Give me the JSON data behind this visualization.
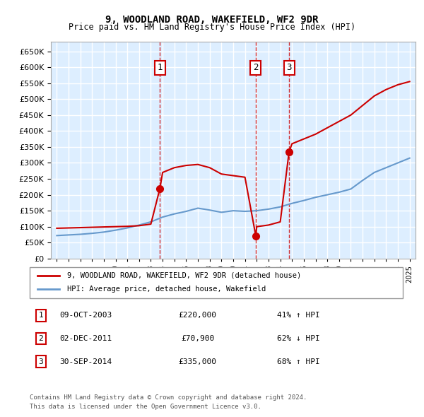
{
  "title": "9, WOODLAND ROAD, WAKEFIELD, WF2 9DR",
  "subtitle": "Price paid vs. HM Land Registry's House Price Index (HPI)",
  "legend_line1": "9, WOODLAND ROAD, WAKEFIELD, WF2 9DR (detached house)",
  "legend_line2": "HPI: Average price, detached house, Wakefield",
  "footer1": "Contains HM Land Registry data © Crown copyright and database right 2024.",
  "footer2": "This data is licensed under the Open Government Licence v3.0.",
  "transactions": [
    {
      "num": 1,
      "date": "09-OCT-2003",
      "price": 220000,
      "pct": "41%",
      "dir": "↑",
      "year": 2003.77
    },
    {
      "num": 2,
      "date": "02-DEC-2011",
      "price": 70900,
      "pct": "62%",
      "dir": "↓",
      "year": 2011.92
    },
    {
      "num": 3,
      "date": "30-SEP-2014",
      "price": 335000,
      "pct": "68%",
      "dir": "↑",
      "year": 2014.75
    }
  ],
  "red_color": "#cc0000",
  "blue_color": "#6699cc",
  "bg_color": "#ddeeff",
  "grid_color": "#ffffff",
  "marker_box_color": "#cc0000",
  "ylim": [
    0,
    680000
  ],
  "yticks": [
    0,
    50000,
    100000,
    150000,
    200000,
    250000,
    300000,
    350000,
    400000,
    450000,
    500000,
    550000,
    600000,
    650000
  ],
  "xlim_start": 1994.5,
  "xlim_end": 2025.5,
  "hpi_years": [
    1995,
    1996,
    1997,
    1998,
    1999,
    2000,
    2001,
    2002,
    2003,
    2004,
    2005,
    2006,
    2007,
    2008,
    2009,
    2010,
    2011,
    2012,
    2013,
    2014,
    2015,
    2016,
    2017,
    2018,
    2019,
    2020,
    2021,
    2022,
    2023,
    2024,
    2025
  ],
  "hpi_values": [
    72000,
    74000,
    76000,
    79000,
    83000,
    89000,
    96000,
    105000,
    115000,
    130000,
    140000,
    148000,
    158000,
    152000,
    145000,
    150000,
    148000,
    150000,
    155000,
    162000,
    173000,
    182000,
    192000,
    200000,
    208000,
    218000,
    245000,
    270000,
    285000,
    300000,
    315000
  ],
  "red_years": [
    1995,
    1996,
    1997,
    1998,
    1999,
    2000,
    2001,
    2002,
    2003,
    2003.77,
    2004,
    2005,
    2006,
    2007,
    2008,
    2009,
    2010,
    2011,
    2011.92,
    2012,
    2013,
    2014,
    2014.75,
    2015,
    2016,
    2017,
    2018,
    2019,
    2020,
    2021,
    2022,
    2023,
    2024,
    2025
  ],
  "red_values": [
    95000,
    96000,
    97000,
    98000,
    99000,
    100000,
    101000,
    103000,
    108000,
    220000,
    270000,
    285000,
    292000,
    295000,
    285000,
    265000,
    260000,
    255000,
    70900,
    100000,
    105000,
    115000,
    335000,
    360000,
    375000,
    390000,
    410000,
    430000,
    450000,
    480000,
    510000,
    530000,
    545000,
    555000
  ]
}
